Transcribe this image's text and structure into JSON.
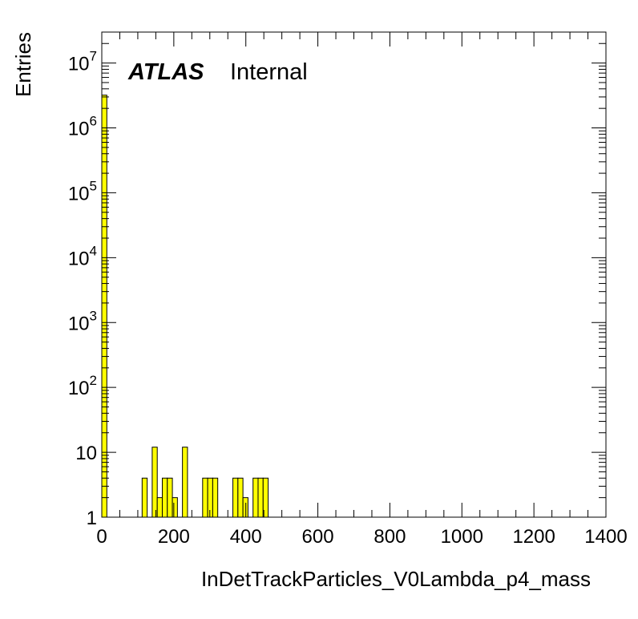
{
  "chart_data": {
    "type": "histogram",
    "xlabel": "InDetTrackParticles_V0Lambda_p4_mass",
    "ylabel": "Entries",
    "label_bold": "ATLAS",
    "label_status": "Internal",
    "xlim": [
      0,
      1400
    ],
    "ylim": [
      1,
      30000000
    ],
    "log_y": true,
    "grid": false,
    "fill_color": "#ffff00",
    "line_color": "#000000",
    "x_ticks": [
      "0",
      "200",
      "400",
      "600",
      "800",
      "1000",
      "1200",
      "1400"
    ],
    "y_ticks": [
      {
        "base": "1",
        "exp": ""
      },
      {
        "base": "10",
        "exp": ""
      },
      {
        "base": "10",
        "exp": "2"
      },
      {
        "base": "10",
        "exp": "3"
      },
      {
        "base": "10",
        "exp": "4"
      },
      {
        "base": "10",
        "exp": "5"
      },
      {
        "base": "10",
        "exp": "6"
      },
      {
        "base": "10",
        "exp": "7"
      }
    ],
    "bin_width": 14,
    "bin_edges_start": 0,
    "values": [
      3200000,
      1,
      1,
      0,
      0,
      0,
      0,
      0,
      4,
      0,
      12,
      2,
      4,
      4,
      2,
      0,
      12,
      0,
      0,
      0,
      4,
      4,
      4,
      0,
      0,
      0,
      4,
      4,
      2,
      0,
      4,
      4,
      4,
      0,
      0,
      0,
      0,
      0,
      0,
      0,
      0,
      0,
      0,
      0,
      0,
      0,
      0,
      0,
      0,
      0,
      0,
      0,
      0,
      0,
      0,
      0,
      0,
      0,
      0,
      0,
      0,
      0,
      0,
      0,
      0,
      0,
      0,
      0,
      0,
      0,
      0,
      0,
      0,
      0,
      0,
      0,
      0,
      0,
      0,
      0,
      0,
      0,
      0,
      0,
      0,
      0,
      0,
      0,
      0,
      0,
      0,
      0,
      0,
      0,
      0,
      0,
      0,
      0,
      0,
      0
    ]
  }
}
